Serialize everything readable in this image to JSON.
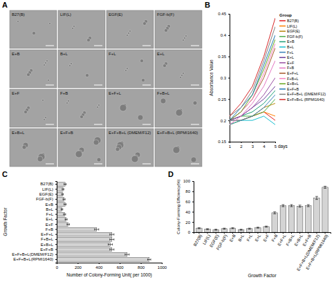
{
  "image_panel": {
    "panel": "A",
    "labels": [
      "B27(B)",
      "LIF(L)",
      "EGF(E)",
      "FGF-b(F)",
      "E+B",
      "B+L",
      "F+L",
      "E+L",
      "E+F",
      "F+B",
      "E+F+L",
      "F+B+L",
      "E+B+L",
      "E+F+B",
      "E+F+B+L (DMEM/F12)",
      "E+F+B+L (RPMI1640)"
    ]
  },
  "chart_data": [
    {
      "type": "line",
      "panel": "B",
      "y_label": "Absorbance Value",
      "x_label": "days",
      "x": [
        1,
        2,
        3,
        4,
        5
      ],
      "xlim": [
        1,
        5
      ],
      "xticks": [
        1,
        2,
        3,
        4,
        5
      ],
      "ylim": [
        0.15,
        0.45
      ],
      "yticks": [
        0.15,
        0.2,
        0.25,
        0.3,
        0.35,
        0.4,
        0.45
      ],
      "grid": false,
      "legend": "right",
      "legend_title": "Group",
      "series": [
        {
          "name": "B27(B)",
          "color": "#e41a1c",
          "values": [
            0.19,
            0.2,
            0.21,
            0.22,
            0.2
          ]
        },
        {
          "name": "LIF(L)",
          "color": "#ff7f00",
          "values": [
            0.2,
            0.2,
            0.21,
            0.22,
            0.21
          ]
        },
        {
          "name": "EGF(E)",
          "color": "#b8860b",
          "values": [
            0.19,
            0.2,
            0.21,
            0.23,
            0.24
          ]
        },
        {
          "name": "FGF-b(F)",
          "color": "#4daf4a",
          "values": [
            0.2,
            0.21,
            0.21,
            0.22,
            0.25
          ]
        },
        {
          "name": "E+B",
          "color": "#1b9e77",
          "values": [
            0.2,
            0.21,
            0.22,
            0.24,
            0.27
          ]
        },
        {
          "name": "B+L",
          "color": "#17becf",
          "values": [
            0.19,
            0.2,
            0.2,
            0.21,
            0.19
          ]
        },
        {
          "name": "F+L",
          "color": "#377eb8",
          "values": [
            0.2,
            0.2,
            0.21,
            0.23,
            0.26
          ]
        },
        {
          "name": "E+L",
          "color": "#6a3d9a",
          "values": [
            0.2,
            0.21,
            0.23,
            0.25,
            0.28
          ]
        },
        {
          "name": "E+F",
          "color": "#984ea3",
          "values": [
            0.2,
            0.21,
            0.23,
            0.26,
            0.3
          ]
        },
        {
          "name": "F+B",
          "color": "#e377c2",
          "values": [
            0.19,
            0.21,
            0.24,
            0.28,
            0.34
          ]
        },
        {
          "name": "E+F+L",
          "color": "#a65628",
          "values": [
            0.2,
            0.22,
            0.25,
            0.3,
            0.37
          ]
        },
        {
          "name": "F+B+L",
          "color": "#f781bf",
          "values": [
            0.2,
            0.22,
            0.25,
            0.31,
            0.38
          ]
        },
        {
          "name": "E+B+L",
          "color": "#66a61e",
          "values": [
            0.2,
            0.22,
            0.26,
            0.32,
            0.39
          ]
        },
        {
          "name": "E+F+B",
          "color": "#1f78b4",
          "values": [
            0.2,
            0.23,
            0.26,
            0.33,
            0.4
          ]
        },
        {
          "name": "E+F+B+L (DMEM/F12)",
          "color": "#7f7f7f",
          "values": [
            0.21,
            0.23,
            0.27,
            0.34,
            0.42
          ]
        },
        {
          "name": "E+F+B+L (RPMI1640)",
          "color": "#d62728",
          "values": [
            0.21,
            0.24,
            0.28,
            0.35,
            0.44
          ]
        }
      ]
    },
    {
      "type": "bar",
      "panel": "C",
      "orientation": "horizontal",
      "grid": false,
      "x_label": "Number of Colony-Forming Unit( per 1000)",
      "y_label": "Growth Factor",
      "categories": [
        "B27(B)",
        "LIF(L)",
        "EGF(E)",
        "FGF-b(F)",
        "E+B",
        "B+L",
        "F+L",
        "E+L",
        "E+F",
        "F+B",
        "E+F+L",
        "F+B+L",
        "E+B+L",
        "E+F+B",
        "E+F+B+L(DMEM/F12)",
        "E+F+B+L(RPMI1640)"
      ],
      "values": [
        80,
        60,
        55,
        70,
        80,
        50,
        75,
        90,
        110,
        380,
        525,
        525,
        510,
        525,
        670,
        880
      ],
      "errors": [
        10,
        8,
        8,
        10,
        10,
        8,
        10,
        10,
        12,
        20,
        20,
        20,
        20,
        20,
        20,
        15
      ],
      "color": "#d4d4d4",
      "xlim": [
        0,
        1000
      ],
      "xticks": [
        0,
        200,
        400,
        600,
        800,
        1000
      ]
    },
    {
      "type": "bar",
      "panel": "D",
      "grid": false,
      "x_label": "Growth Factor",
      "y_label": "Colony-Forming Efficiency(%)",
      "categories": [
        "B27(B)",
        "LIF(L)",
        "EGF(E)",
        "FGF-b(F)",
        "E+B",
        "B+L",
        "F+L",
        "E+L",
        "E+F",
        "F+B",
        "E+F+L",
        "F+B+L",
        "E+B+L",
        "E+F+B",
        "E+F+B+L(DMEM/F12)",
        "E+F+B+L(RPMI1640)"
      ],
      "values": [
        8,
        6,
        5,
        7,
        8,
        5,
        7,
        9,
        11,
        38,
        52,
        52,
        51,
        52,
        67,
        88
      ],
      "errors": [
        1,
        1,
        1,
        1,
        1,
        1,
        1,
        1,
        1,
        2,
        2,
        2,
        2,
        2,
        3,
        2
      ],
      "color": "#d4d4d4",
      "ylim": [
        0,
        100
      ],
      "yticks": [
        0,
        20,
        40,
        60,
        80,
        100
      ]
    }
  ]
}
